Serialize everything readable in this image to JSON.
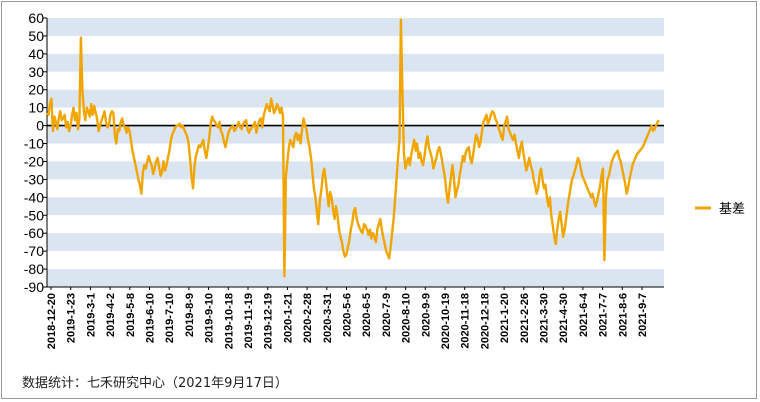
{
  "chart_data": {
    "type": "line",
    "title": "",
    "xlabel": "",
    "ylabel": "",
    "ylim": [
      -90,
      60
    ],
    "y_ticks": [
      60,
      50,
      40,
      30,
      20,
      10,
      0,
      -10,
      -20,
      -30,
      -40,
      -50,
      -60,
      -70,
      -80,
      -90
    ],
    "grid": "alternating horizontal bands",
    "legend_position": "right",
    "colors": {
      "series": "#f0a500",
      "band": "#dbe5f1",
      "zero_line": "#000000"
    },
    "x_tick_labels": [
      "2018-12-20",
      "2019-1-23",
      "2019-3-1",
      "2019-4-2",
      "2019-5-8",
      "2019-6-10",
      "2019-7-10",
      "2019-8-9",
      "2019-9-10",
      "2019-10-18",
      "2019-11-19",
      "2019-12-19",
      "2020-1-21",
      "2020-2-28",
      "2020-3-31",
      "2020-5-6",
      "2020-6-5",
      "2020-7-9",
      "2020-8-10",
      "2020-9-9",
      "2020-10-19",
      "2020-11-18",
      "2020-12-18",
      "2021-1-20",
      "2021-2-26",
      "2021-3-30",
      "2021-4-30",
      "2021-6-4",
      "2021-7-7",
      "2021-8-6",
      "2021-9-7"
    ],
    "series": [
      {
        "name": "基差",
        "values": [
          7,
          6,
          12,
          15,
          -3,
          5,
          2,
          -2,
          4,
          8,
          3,
          4,
          6,
          -1,
          2,
          -3,
          0,
          6,
          10,
          3,
          7,
          -2,
          4,
          49,
          20,
          8,
          3,
          10,
          8,
          5,
          12,
          6,
          11,
          7,
          4,
          -3,
          0,
          3,
          5,
          8,
          2,
          -1,
          0,
          6,
          8,
          7,
          -5,
          -10,
          -2,
          -3,
          2,
          4,
          0,
          -1,
          -4,
          -1,
          -3,
          -9,
          -14,
          -18,
          -22,
          -26,
          -30,
          -33,
          -38,
          -26,
          -22,
          -24,
          -20,
          -17,
          -20,
          -22,
          -27,
          -24,
          -20,
          -18,
          -23,
          -28,
          -26,
          -20,
          -25,
          -22,
          -18,
          -14,
          -8,
          -5,
          -3,
          -1,
          0,
          0,
          1,
          -1,
          0,
          -2,
          -4,
          -6,
          -10,
          -18,
          -28,
          -35,
          -23,
          -17,
          -14,
          -11,
          -12,
          -10,
          -8,
          -14,
          -18,
          -13,
          -7,
          1,
          5,
          3,
          2,
          0,
          -1,
          2,
          -3,
          -5,
          -9,
          -12,
          -8,
          -4,
          -2,
          -1,
          0,
          -3,
          -2,
          0,
          2,
          -1,
          -2,
          1,
          2,
          3,
          -2,
          -4,
          -2,
          -1,
          0,
          2,
          -4,
          0,
          3,
          4,
          -1,
          6,
          9,
          12,
          10,
          8,
          15,
          11,
          7,
          9,
          12,
          10,
          7,
          10,
          5,
          -84,
          -28,
          -20,
          -12,
          -8,
          -10,
          -12,
          -6,
          -4,
          -8,
          -5,
          -10,
          -2,
          4,
          0,
          -2,
          -8,
          -12,
          -18,
          -26,
          -35,
          -40,
          -48,
          -55,
          -42,
          -36,
          -28,
          -24,
          -30,
          -38,
          -45,
          -37,
          -40,
          -47,
          -52,
          -45,
          -50,
          -58,
          -62,
          -65,
          -70,
          -73,
          -72,
          -68,
          -64,
          -58,
          -54,
          -48,
          -46,
          -52,
          -55,
          -57,
          -59,
          -60,
          -55,
          -56,
          -58,
          -61,
          -58,
          -63,
          -60,
          -62,
          -65,
          -58,
          -55,
          -52,
          -58,
          -62,
          -66,
          -70,
          -72,
          -74,
          -68,
          -60,
          -52,
          -42,
          -30,
          -18,
          -8,
          59,
          20,
          -15,
          -24,
          -21,
          -18,
          -22,
          -16,
          -12,
          -8,
          -14,
          -10,
          -18,
          -15,
          -20,
          -22,
          -17,
          -10,
          -6,
          -12,
          -15,
          -18,
          -24,
          -21,
          -18,
          -14,
          -12,
          -15,
          -20,
          -25,
          -30,
          -38,
          -43,
          -35,
          -28,
          -22,
          -30,
          -40,
          -36,
          -33,
          -27,
          -22,
          -17,
          -20,
          -15,
          -13,
          -12,
          -18,
          -21,
          -16,
          -10,
          -5,
          -7,
          -12,
          -9,
          -3,
          2,
          4,
          6,
          1,
          3,
          6,
          8,
          7,
          4,
          2,
          -1,
          -3,
          -6,
          -8,
          0,
          2,
          5,
          -2,
          -4,
          -6,
          -8,
          -5,
          -10,
          -14,
          -18,
          -12,
          -9,
          -15,
          -20,
          -25,
          -22,
          -18,
          -22,
          -25,
          -30,
          -33,
          -38,
          -35,
          -28,
          -24,
          -30,
          -35,
          -33,
          -40,
          -45,
          -40,
          -50,
          -56,
          -62,
          -66,
          -58,
          -52,
          -48,
          -55,
          -62,
          -58,
          -52,
          -45,
          -40,
          -35,
          -30,
          -28,
          -25,
          -22,
          -18,
          -20,
          -24,
          -28,
          -30,
          -32,
          -34,
          -36,
          -38,
          -40,
          -38,
          -42,
          -45,
          -42,
          -38,
          -34,
          -28,
          -24,
          -75,
          -40,
          -30,
          -28,
          -24,
          -20,
          -18,
          -16,
          -15,
          -14,
          -18,
          -20,
          -24,
          -28,
          -32,
          -38,
          -35,
          -30,
          -26,
          -22,
          -20,
          -18,
          -16,
          -15,
          -14,
          -13,
          -12,
          -10,
          -8,
          -6,
          -4,
          -2,
          0,
          -3,
          -2,
          0,
          2,
          3
        ]
      }
    ]
  },
  "legend": {
    "series_label": "基差"
  },
  "footer": {
    "source": "数据统计：七禾研究中心（2021年9月17日）"
  }
}
